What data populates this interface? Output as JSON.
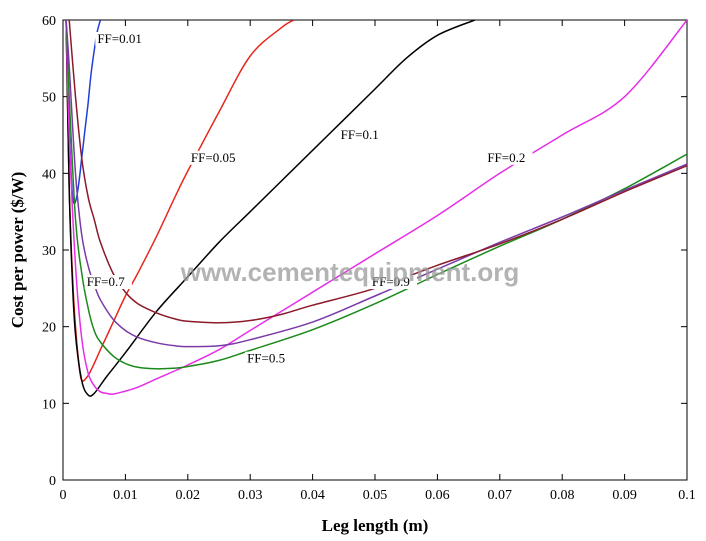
{
  "watermark": "www.cementequipment.org",
  "chart_data": {
    "type": "line",
    "xlabel": "Leg length (m)",
    "ylabel": "Cost per power ($/W)",
    "xlim": [
      0,
      0.1
    ],
    "ylim": [
      0,
      60
    ],
    "xticks": [
      0,
      0.01,
      0.02,
      0.03,
      0.04,
      0.05,
      0.06,
      0.07,
      0.08,
      0.09,
      0.1
    ],
    "xtick_labels": [
      "0",
      "0.01",
      "0.02",
      "0.03",
      "0.04",
      "0.05",
      "0.06",
      "0.07",
      "0.08",
      "0.09",
      "0.1"
    ],
    "yticks": [
      0,
      10,
      20,
      30,
      40,
      50,
      60
    ],
    "ytick_labels": [
      "0",
      "10",
      "20",
      "30",
      "40",
      "50",
      "60"
    ],
    "grid": false,
    "series": [
      {
        "name": "FF=0.01",
        "color": "#1f3fd6",
        "x": [
          0.0005,
          0.0008,
          0.001,
          0.0013,
          0.0016,
          0.002,
          0.0025,
          0.003,
          0.0035,
          0.004,
          0.0045,
          0.005,
          0.0055,
          0.006
        ],
        "y": [
          60,
          52,
          46,
          40,
          36.5,
          36.3,
          38.5,
          42,
          45.5,
          49,
          53,
          56,
          58.5,
          60
        ]
      },
      {
        "name": "FF=0.05",
        "color": "#e8281e",
        "x": [
          0.0005,
          0.001,
          0.0015,
          0.002,
          0.0025,
          0.003,
          0.004,
          0.005,
          0.006,
          0.008,
          0.01,
          0.012,
          0.015,
          0.018,
          0.02,
          0.025,
          0.03,
          0.035,
          0.037
        ],
        "y": [
          60,
          38,
          27,
          20,
          15.5,
          13,
          13.6,
          15.2,
          17,
          20.5,
          24,
          27,
          31.8,
          37,
          40.3,
          48,
          55.3,
          59,
          60
        ]
      },
      {
        "name": "FF=0.1",
        "color": "#000000",
        "x": [
          0.0005,
          0.001,
          0.0015,
          0.002,
          0.003,
          0.004,
          0.005,
          0.007,
          0.01,
          0.015,
          0.02,
          0.025,
          0.03,
          0.035,
          0.04,
          0.045,
          0.05,
          0.055,
          0.06,
          0.066
        ],
        "y": [
          60,
          38,
          26,
          19,
          13,
          11.1,
          11.3,
          13.5,
          16.6,
          22,
          26.5,
          31,
          35,
          39,
          43,
          47,
          51,
          55,
          58,
          60
        ]
      },
      {
        "name": "FF=0.2",
        "color": "#e62fe6",
        "x": [
          0.0005,
          0.001,
          0.002,
          0.003,
          0.004,
          0.005,
          0.006,
          0.007,
          0.008,
          0.01,
          0.012,
          0.015,
          0.02,
          0.025,
          0.03,
          0.04,
          0.05,
          0.06,
          0.07,
          0.08,
          0.09,
          0.1
        ],
        "y": [
          60,
          45,
          28,
          18.5,
          14,
          12.3,
          11.5,
          11.3,
          11.2,
          11.6,
          12.1,
          13.2,
          15,
          17,
          19.5,
          24.5,
          29.5,
          34.5,
          40,
          45,
          50,
          60
        ]
      },
      {
        "name": "FF=0.5",
        "color": "#1b8a1b",
        "x": [
          0.0005,
          0.001,
          0.002,
          0.003,
          0.004,
          0.005,
          0.006,
          0.008,
          0.01,
          0.012,
          0.015,
          0.018,
          0.02,
          0.025,
          0.03,
          0.04,
          0.05,
          0.06,
          0.07,
          0.08,
          0.09,
          0.1
        ],
        "y": [
          60,
          50,
          34,
          27,
          22.5,
          19.5,
          18,
          16.2,
          15.2,
          14.7,
          14.5,
          14.6,
          14.8,
          15.6,
          16.9,
          19.6,
          23,
          26.8,
          30.5,
          34,
          38,
          42.5
        ]
      },
      {
        "name": "FF=0.7",
        "color": "#7a3aa8",
        "x": [
          0.0005,
          0.001,
          0.002,
          0.003,
          0.004,
          0.005,
          0.006,
          0.008,
          0.01,
          0.012,
          0.015,
          0.018,
          0.02,
          0.025,
          0.03,
          0.04,
          0.05,
          0.06,
          0.07,
          0.08,
          0.09,
          0.1
        ],
        "y": [
          60,
          54,
          40,
          32,
          28,
          25.5,
          23.5,
          21,
          19.5,
          18.6,
          17.9,
          17.5,
          17.4,
          17.5,
          18.3,
          20.6,
          24,
          27.5,
          31,
          34.3,
          37.8,
          41.2
        ]
      },
      {
        "name": "FF=0.9",
        "color": "#8b1a2a",
        "x": [
          0.001,
          0.002,
          0.003,
          0.004,
          0.005,
          0.006,
          0.008,
          0.01,
          0.012,
          0.015,
          0.018,
          0.02,
          0.025,
          0.03,
          0.035,
          0.04,
          0.05,
          0.06,
          0.07,
          0.08,
          0.09,
          0.1
        ],
        "y": [
          60,
          50,
          42,
          37,
          34,
          31,
          27,
          24.5,
          23,
          21.8,
          21,
          20.7,
          20.5,
          20.8,
          21.6,
          22.8,
          25,
          28,
          30.8,
          34,
          37.6,
          41
        ]
      }
    ],
    "annotations": [
      {
        "text": "FF=0.01",
        "series": "FF=0.01",
        "x": 0.0055,
        "y": 57
      },
      {
        "text": "FF=0.05",
        "series": "FF=0.05",
        "x": 0.0205,
        "y": 41.5
      },
      {
        "text": "FF=0.1",
        "series": "FF=0.1",
        "x": 0.0445,
        "y": 44.5
      },
      {
        "text": "FF=0.2",
        "series": "FF=0.2",
        "x": 0.068,
        "y": 41.5
      },
      {
        "text": "FF=0.7",
        "series": "FF=0.7",
        "x": 0.0038,
        "y": 25.3
      },
      {
        "text": "FF=0.9",
        "series": "FF=0.9",
        "x": 0.0495,
        "y": 25.3
      },
      {
        "text": "FF=0.5",
        "series": "FF=0.5",
        "x": 0.0295,
        "y": 15.3
      }
    ]
  }
}
